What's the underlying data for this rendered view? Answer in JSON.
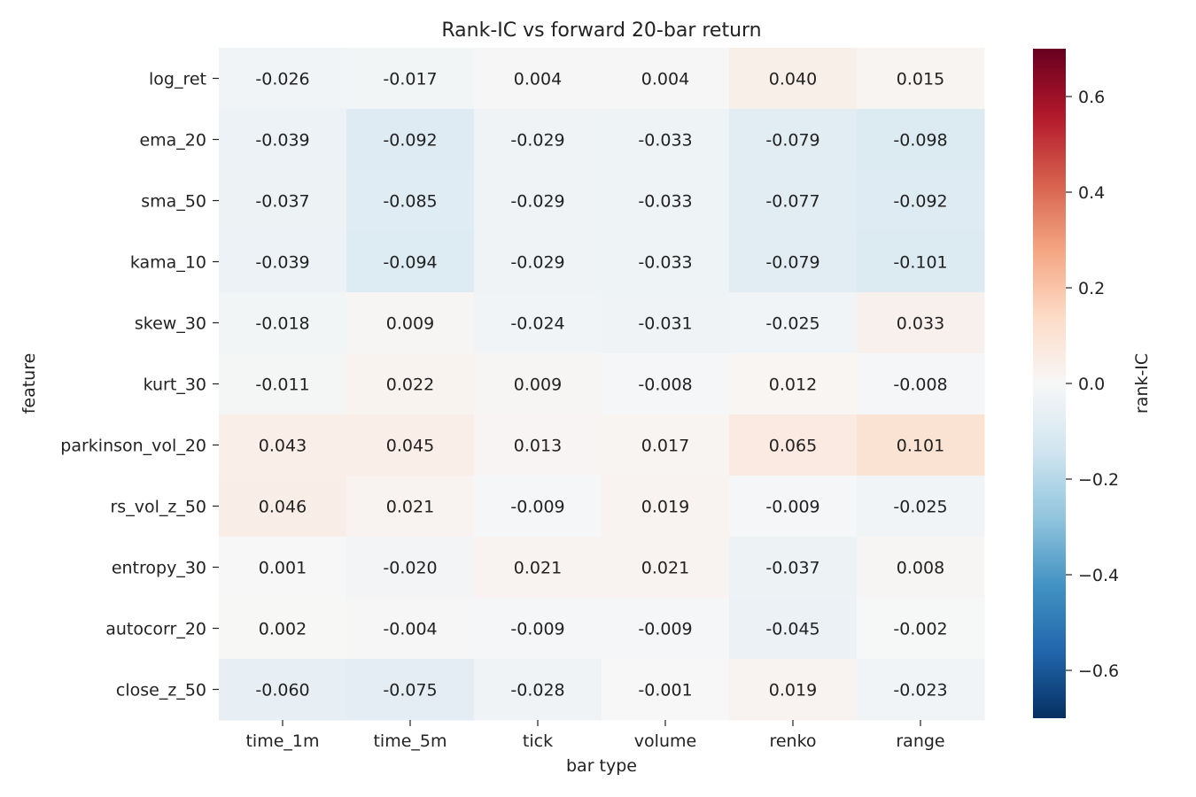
{
  "chart_data": {
    "type": "heatmap",
    "title": "Rank-IC vs forward 20-bar return",
    "xlabel": "bar type",
    "ylabel": "feature",
    "x_categories": [
      "time_1m",
      "time_5m",
      "tick",
      "volume",
      "renko",
      "range"
    ],
    "y_categories": [
      "log_ret",
      "ema_20",
      "sma_50",
      "kama_10",
      "skew_30",
      "kurt_30",
      "parkinson_vol_20",
      "rs_vol_z_50",
      "entropy_30",
      "autocorr_20",
      "close_z_50"
    ],
    "values": [
      [
        -0.026,
        -0.017,
        0.004,
        0.004,
        0.04,
        0.015
      ],
      [
        -0.039,
        -0.092,
        -0.029,
        -0.033,
        -0.079,
        -0.098
      ],
      [
        -0.037,
        -0.085,
        -0.029,
        -0.033,
        -0.077,
        -0.092
      ],
      [
        -0.039,
        -0.094,
        -0.029,
        -0.033,
        -0.079,
        -0.101
      ],
      [
        -0.018,
        0.009,
        -0.024,
        -0.031,
        -0.025,
        0.033
      ],
      [
        -0.011,
        0.022,
        0.009,
        -0.008,
        0.012,
        -0.008
      ],
      [
        0.043,
        0.045,
        0.013,
        0.017,
        0.065,
        0.101
      ],
      [
        0.046,
        0.021,
        -0.009,
        0.019,
        -0.009,
        -0.025
      ],
      [
        0.001,
        -0.02,
        0.021,
        0.021,
        -0.037,
        0.008
      ],
      [
        0.002,
        -0.004,
        -0.009,
        -0.009,
        -0.045,
        -0.002
      ],
      [
        -0.06,
        -0.075,
        -0.028,
        -0.001,
        0.019,
        -0.023
      ]
    ],
    "value_format": "3 decimals",
    "colormap": "RdBu_r",
    "vmin": -0.7,
    "vmax": 0.7,
    "colorbar": {
      "label": "rank-IC",
      "ticks": [
        -0.6,
        -0.4,
        -0.2,
        0.0,
        0.2,
        0.4,
        0.6
      ],
      "tick_labels": [
        "−0.6",
        "−0.4",
        "−0.2",
        "0.0",
        "0.2",
        "0.4",
        "0.6"
      ]
    }
  }
}
